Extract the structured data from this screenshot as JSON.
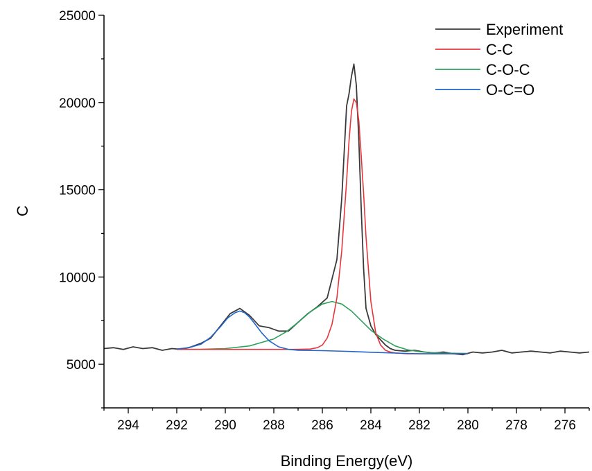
{
  "chart_data": {
    "type": "line",
    "xlabel": "Binding Energy(eV)",
    "ylabel": "C",
    "xlim": [
      295,
      275
    ],
    "ylim": [
      2500,
      25000
    ],
    "x_reversed": true,
    "x_ticks": [
      294,
      292,
      290,
      288,
      286,
      284,
      282,
      280,
      278,
      276
    ],
    "y_ticks": [
      5000,
      10000,
      15000,
      20000,
      25000
    ],
    "legend_position": "top-right",
    "series": [
      {
        "name": "Experiment",
        "color": "#3a3a3a",
        "x": [
          295.0,
          294.6,
          294.2,
          293.8,
          293.4,
          293.0,
          292.6,
          292.2,
          291.8,
          291.4,
          291.0,
          290.6,
          290.2,
          289.8,
          289.4,
          289.0,
          288.6,
          288.2,
          287.8,
          287.4,
          287.0,
          286.6,
          286.2,
          285.8,
          285.4,
          285.2,
          285.0,
          284.9,
          284.8,
          284.7,
          284.6,
          284.5,
          284.4,
          284.3,
          284.2,
          284.0,
          283.8,
          283.6,
          283.4,
          283.2,
          283.0,
          282.6,
          282.2,
          281.8,
          281.4,
          281.0,
          280.6,
          280.2,
          279.8,
          279.4,
          279.0,
          278.6,
          278.2,
          277.8,
          277.4,
          277.0,
          276.6,
          276.2,
          275.8,
          275.4,
          275.0
        ],
        "y": [
          5900,
          5950,
          5850,
          6000,
          5900,
          5950,
          5800,
          5900,
          5850,
          6000,
          6200,
          6500,
          7200,
          7900,
          8200,
          7800,
          7200,
          7100,
          6900,
          6900,
          7400,
          7900,
          8300,
          8800,
          11000,
          14500,
          19800,
          20500,
          21500,
          22200,
          21000,
          18000,
          14000,
          10500,
          8200,
          7200,
          6700,
          6400,
          6100,
          5900,
          5800,
          5750,
          5800,
          5700,
          5650,
          5700,
          5600,
          5550,
          5700,
          5650,
          5700,
          5800,
          5650,
          5700,
          5750,
          5700,
          5650,
          5750,
          5700,
          5650,
          5700
        ]
      },
      {
        "name": "C-C",
        "color": "#e8353b",
        "x": [
          292.0,
          288.0,
          287.0,
          286.5,
          286.2,
          286.0,
          285.8,
          285.6,
          285.4,
          285.2,
          285.0,
          284.9,
          284.8,
          284.7,
          284.6,
          284.5,
          284.4,
          284.3,
          284.2,
          284.0,
          283.8,
          283.6,
          283.4,
          283.2,
          283.0,
          282.5,
          282.0,
          280.0
        ],
        "y": [
          5850,
          5850,
          5850,
          5870,
          5950,
          6100,
          6500,
          7300,
          8800,
          11500,
          15500,
          17800,
          19500,
          20200,
          20000,
          19000,
          17000,
          14800,
          12300,
          8600,
          6800,
          6100,
          5800,
          5700,
          5650,
          5600,
          5600,
          5600
        ]
      },
      {
        "name": "C-O-C",
        "color": "#2ea25c",
        "x": [
          292.0,
          291.0,
          290.0,
          289.0,
          288.0,
          287.5,
          287.0,
          286.5,
          286.0,
          285.6,
          285.2,
          284.8,
          284.4,
          284.0,
          283.5,
          283.0,
          282.5,
          282.0,
          281.5,
          281.0,
          280.0
        ],
        "y": [
          5850,
          5860,
          5900,
          6050,
          6450,
          6850,
          7400,
          8000,
          8450,
          8600,
          8450,
          8050,
          7500,
          6950,
          6450,
          6050,
          5830,
          5720,
          5670,
          5640,
          5620
        ]
      },
      {
        "name": "O-C=O",
        "color": "#2165c9",
        "x": [
          292.0,
          291.5,
          291.0,
          290.6,
          290.2,
          289.9,
          289.6,
          289.4,
          289.2,
          289.0,
          288.8,
          288.5,
          288.2,
          287.8,
          287.4,
          287.0,
          286.0,
          285.0,
          284.0,
          283.0,
          282.0,
          281.0,
          280.0
        ],
        "y": [
          5870,
          5950,
          6150,
          6550,
          7150,
          7650,
          7950,
          8050,
          7950,
          7700,
          7350,
          6800,
          6350,
          6000,
          5850,
          5800,
          5780,
          5740,
          5690,
          5640,
          5600,
          5600,
          5600
        ]
      }
    ]
  }
}
